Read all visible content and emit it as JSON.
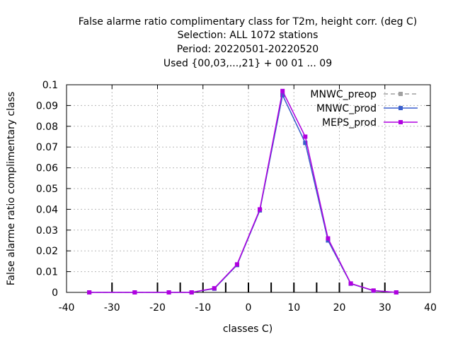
{
  "chart_data": {
    "type": "line",
    "title_lines": [
      "False alarme ratio complimentary class  for T2m, height corr. (deg C)",
      "Selection: ALL    1072 stations",
      "Period: 20220501-20220520",
      "Used {00,03,...,21} + 00 01 ... 09"
    ],
    "xlabel": "classes C)",
    "ylabel": "False alarme ratio complimentary class",
    "xlim": [
      -40,
      40
    ],
    "ylim": [
      0,
      0.1
    ],
    "xticks": [
      -40,
      -30,
      -20,
      -10,
      0,
      10,
      20,
      30,
      40
    ],
    "yticks": [
      0,
      0.01,
      0.02,
      0.03,
      0.04,
      0.05,
      0.06,
      0.07,
      0.08,
      0.09,
      0.1
    ],
    "xtick_labels": [
      "-40",
      "-30",
      "-20",
      "-10",
      "0",
      "10",
      "20",
      "30",
      "40"
    ],
    "ytick_labels": [
      "0",
      "0.01",
      "0.02",
      "0.03",
      "0.04",
      "0.05",
      "0.06",
      "0.07",
      "0.08",
      "0.09",
      "0.1"
    ],
    "class_boundaries": [
      -30,
      -20,
      -15,
      -10,
      -5,
      0,
      5,
      10,
      15,
      20,
      25,
      30
    ],
    "grid": true,
    "legend_position": "top-right",
    "series": [
      {
        "name": "MNWC_preop",
        "color": "#a0a0a0",
        "dashed": true,
        "x": [
          -35,
          -25,
          -17.5,
          -12.5,
          -7.5,
          -2.5,
          2.5,
          7.5,
          12.5,
          17.5,
          22.5,
          27.5,
          32.5
        ],
        "y": [
          0,
          0,
          0,
          0,
          0.0018,
          0.0132,
          0.0395,
          0.095,
          0.072,
          0.025,
          0.0042,
          0.0008,
          0
        ]
      },
      {
        "name": "MNWC_prod",
        "color": "#3a5fcd",
        "dashed": false,
        "x": [
          -35,
          -25,
          -17.5,
          -12.5,
          -7.5,
          -2.5,
          2.5,
          7.5,
          12.5,
          17.5,
          22.5,
          27.5,
          32.5
        ],
        "y": [
          0,
          0,
          0,
          0,
          0.0018,
          0.0132,
          0.0395,
          0.095,
          0.072,
          0.025,
          0.0042,
          0.0008,
          0
        ]
      },
      {
        "name": "MEPS_prod",
        "color": "#b000e0",
        "dashed": false,
        "x": [
          -35,
          -25,
          -17.5,
          -12.5,
          -7.5,
          -2.5,
          2.5,
          7.5,
          12.5,
          17.5,
          22.5,
          27.5,
          32.5
        ],
        "y": [
          0,
          0,
          0,
          0,
          0.002,
          0.0135,
          0.04,
          0.097,
          0.075,
          0.026,
          0.0043,
          0.0009,
          0
        ]
      }
    ]
  }
}
